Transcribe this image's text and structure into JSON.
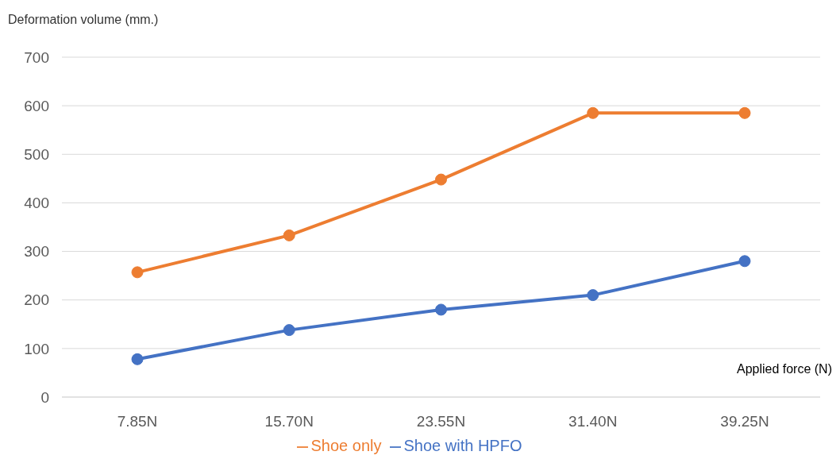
{
  "chart_data": {
    "type": "line",
    "ylabel": "Deformation volume (mm.)",
    "xlabel": "Applied force (N)",
    "categories": [
      "7.85N",
      "15.70N",
      "23.55N",
      "31.40N",
      "39.25N"
    ],
    "series": [
      {
        "name": "Shoe with HPFO",
        "color": "#4472c4",
        "values": [
          78,
          138,
          180,
          210,
          280
        ]
      },
      {
        "name": "Shoe only",
        "color": "#ed7d31",
        "values": [
          257,
          333,
          448,
          585,
          585
        ]
      }
    ],
    "ylim": [
      0,
      700
    ],
    "yticks": [
      0,
      100,
      200,
      300,
      400,
      500,
      600,
      700
    ],
    "grid": "y",
    "legend": "bottom",
    "marker": "circle",
    "line_style": "solid"
  }
}
